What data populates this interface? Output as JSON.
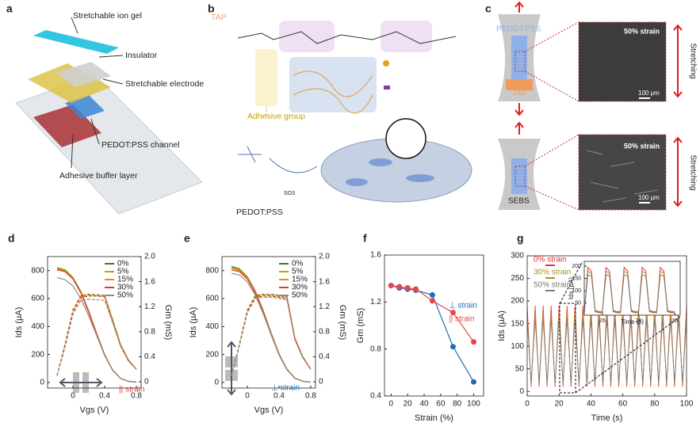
{
  "panel_a": {
    "label": "a",
    "ion_gel": "Stretchable ion gel",
    "insulator": "Insulator",
    "electrode": "Stretchable electrode",
    "channel": "PEDOT:PSS channel",
    "buffer": "Adhesive buffer layer"
  },
  "panel_b": {
    "label": "b",
    "tap": "TAP",
    "adhesive": "Adhesive group",
    "pedot": "PEDOT:PSS",
    "so3": "SO3"
  },
  "panel_c": {
    "label": "c",
    "top": {
      "pedot": "PEDOT:PSS",
      "tap": "TAP",
      "strain": "50% strain",
      "scale": "100 µm",
      "stretching": "Stretching"
    },
    "bottom": {
      "sebs": "SEBS",
      "strain": "50% strain",
      "scale": "100 µm",
      "stretching": "Stretching"
    }
  },
  "chart_data": [
    {
      "type": "line",
      "panel": "d",
      "x": [
        -0.2,
        -0.1,
        0,
        0.1,
        0.2,
        0.3,
        0.4,
        0.5,
        0.6,
        0.7,
        0.8
      ],
      "xlim": [
        -0.32,
        0.86
      ],
      "xticks": [
        0,
        0.4,
        0.8
      ],
      "ylim": [
        -40,
        900
      ],
      "yticks": [
        0,
        200,
        400,
        600,
        800
      ],
      "y2lim": [
        -0.1,
        2.0
      ],
      "y2ticks": [
        0,
        0.4,
        0.8,
        1.2,
        1.6,
        {
          "value": 2,
          "label": "2.0"
        }
      ],
      "xlabel": "Vgs (V)",
      "ylabel": "Ids (µA)",
      "y2label": "Gm (mS)",
      "legend": "upper right",
      "annotation": "|| strain",
      "annotation_color": "#e8352b",
      "series": [
        {
          "name": "0%",
          "color": "#3b7a1e",
          "values": [
            820,
            805,
            750,
            650,
            510,
            350,
            200,
            90,
            30,
            8,
            2
          ]
        },
        {
          "name": "5%",
          "color": "#c8a400",
          "values": [
            815,
            800,
            745,
            645,
            505,
            348,
            198,
            90,
            30,
            8,
            2
          ]
        },
        {
          "name": "15%",
          "color": "#f08c00",
          "values": [
            810,
            795,
            742,
            642,
            503,
            346,
            197,
            89,
            30,
            8,
            2
          ]
        },
        {
          "name": "30%",
          "color": "#e8352b",
          "values": [
            805,
            792,
            740,
            640,
            500,
            345,
            196,
            88,
            29,
            8,
            2
          ]
        },
        {
          "name": "50%",
          "color": "#8c8c8c",
          "values": [
            750,
            735,
            690,
            600,
            475,
            335,
            192,
            87,
            29,
            8,
            2
          ]
        },
        {
          "axis": "y2",
          "dash": true,
          "color": "#3b7a1e",
          "values": [
            0.1,
            0.6,
            1.15,
            1.38,
            1.4,
            1.39,
            1.38,
            1.0,
            0.6,
            0.35,
            0.2
          ]
        },
        {
          "axis": "y2",
          "dash": true,
          "color": "#c8a400",
          "values": [
            0.1,
            0.6,
            1.14,
            1.37,
            1.39,
            1.38,
            1.37,
            1.0,
            0.6,
            0.35,
            0.2
          ]
        },
        {
          "axis": "y2",
          "dash": true,
          "color": "#f08c00",
          "values": [
            0.1,
            0.59,
            1.13,
            1.36,
            1.38,
            1.37,
            1.36,
            0.98,
            0.59,
            0.34,
            0.2
          ]
        },
        {
          "axis": "y2",
          "dash": true,
          "color": "#e8352b",
          "values": [
            0.1,
            0.58,
            1.12,
            1.35,
            1.37,
            1.37,
            1.36,
            0.97,
            0.58,
            0.34,
            0.2
          ]
        },
        {
          "axis": "y2",
          "dash": true,
          "color": "#8c8c8c",
          "values": [
            0.1,
            0.55,
            1.08,
            1.3,
            1.32,
            1.31,
            1.3,
            0.95,
            0.57,
            0.33,
            0.2
          ]
        }
      ]
    },
    {
      "type": "line",
      "panel": "e",
      "x": [
        -0.2,
        -0.1,
        0,
        0.1,
        0.2,
        0.3,
        0.4,
        0.5,
        0.6,
        0.7,
        0.8
      ],
      "xlim": [
        -0.32,
        0.86
      ],
      "xticks": [
        0,
        0.4,
        0.8
      ],
      "ylim": [
        -40,
        900
      ],
      "yticks": [
        0,
        200,
        400,
        600,
        800
      ],
      "y2lim": [
        -0.1,
        2.0
      ],
      "y2ticks": [
        0,
        0.4,
        0.8,
        1.2,
        1.6,
        {
          "value": 2,
          "label": "2.0"
        }
      ],
      "xlabel": "Vgs (V)",
      "ylabel": "Ids (µA)",
      "y2label": "Gm (mS)",
      "legend": "upper right",
      "annotation": "⊥ strain",
      "annotation_color": "#1f6fb4",
      "series": [
        {
          "name": "0%",
          "color": "#3b7a1e",
          "values": [
            830,
            812,
            755,
            655,
            515,
            355,
            205,
            95,
            32,
            8,
            2
          ]
        },
        {
          "name": "5%",
          "color": "#c8a400",
          "values": [
            822,
            805,
            750,
            650,
            510,
            352,
            203,
            94,
            31,
            8,
            2
          ]
        },
        {
          "name": "15%",
          "color": "#f08c00",
          "values": [
            815,
            800,
            745,
            646,
            506,
            350,
            201,
            93,
            31,
            8,
            2
          ]
        },
        {
          "name": "30%",
          "color": "#e8352b",
          "values": [
            805,
            792,
            740,
            640,
            502,
            347,
            199,
            92,
            30,
            8,
            2
          ]
        },
        {
          "name": "50%",
          "color": "#8c8c8c",
          "values": [
            780,
            768,
            720,
            625,
            492,
            340,
            196,
            90,
            30,
            8,
            2
          ]
        },
        {
          "axis": "y2",
          "dash": true,
          "color": "#3b7a1e",
          "values": [
            0.1,
            0.6,
            1.15,
            1.38,
            1.4,
            1.4,
            1.38,
            1.36,
            0.7,
            0.4,
            0.2
          ]
        },
        {
          "axis": "y2",
          "dash": true,
          "color": "#c8a400",
          "values": [
            0.1,
            0.6,
            1.14,
            1.37,
            1.39,
            1.39,
            1.37,
            1.35,
            0.7,
            0.4,
            0.2
          ]
        },
        {
          "axis": "y2",
          "dash": true,
          "color": "#f08c00",
          "values": [
            0.1,
            0.59,
            1.13,
            1.36,
            1.38,
            1.38,
            1.36,
            1.34,
            0.69,
            0.39,
            0.2
          ]
        },
        {
          "axis": "y2",
          "dash": true,
          "color": "#e8352b",
          "values": [
            0.1,
            0.58,
            1.12,
            1.35,
            1.37,
            1.37,
            1.35,
            1.33,
            0.68,
            0.39,
            0.2
          ]
        },
        {
          "axis": "y2",
          "dash": true,
          "color": "#8c8c8c",
          "values": [
            0.1,
            0.57,
            1.1,
            1.33,
            1.35,
            1.35,
            1.33,
            1.31,
            0.67,
            0.38,
            0.2
          ]
        }
      ]
    },
    {
      "type": "line",
      "panel": "f",
      "markers": true,
      "x": [
        0,
        10,
        20,
        30,
        50,
        75,
        100
      ],
      "xlim": [
        -8,
        112
      ],
      "xticks": [
        0,
        20,
        40,
        60,
        80,
        100
      ],
      "ylim": [
        0.4,
        1.6
      ],
      "yticks": [
        0.4,
        0.8,
        1.2,
        1.6
      ],
      "xlabel": "Strain (%)",
      "ylabel": "Gm (mS)",
      "legend": "center right",
      "series": [
        {
          "name": "⊥ strain",
          "color": "#1f6fb4",
          "values": [
            1.34,
            1.32,
            1.31,
            1.3,
            1.26,
            0.82,
            0.52
          ]
        },
        {
          "name": "|| strain",
          "color": "#e8454a",
          "values": [
            1.34,
            1.33,
            1.32,
            1.31,
            1.21,
            1.11,
            0.86
          ]
        }
      ]
    },
    {
      "type": "line",
      "panel": "g",
      "x": [
        0,
        2.5,
        5,
        7.5,
        10,
        12.5,
        15,
        17.5,
        20,
        22.5,
        25,
        27.5,
        30,
        32.5,
        35,
        37.5,
        40,
        42.5,
        45,
        47.5,
        50,
        52.5,
        55,
        57.5,
        60,
        62.5,
        65,
        67.5,
        70,
        72.5,
        75,
        77.5,
        80,
        82.5,
        85,
        87.5,
        90,
        92.5,
        95,
        97.5,
        100
      ],
      "xlim": [
        0,
        100
      ],
      "xticks": [
        0,
        20,
        40,
        60,
        80,
        100
      ],
      "ylim": [
        -10,
        300
      ],
      "yticks": [
        0,
        50,
        100,
        150,
        200,
        250,
        300
      ],
      "xlabel": "Time (s)",
      "ylabel": "Ids (µA)",
      "legend": "upper left",
      "series": [
        {
          "name": "0% strain",
          "color": "#e8352b",
          "values": [
            190,
            10,
            190,
            10,
            190,
            10,
            190,
            10,
            190,
            10,
            190,
            10,
            190,
            10,
            190,
            10,
            190,
            10,
            190,
            10,
            190,
            10,
            190,
            10,
            190,
            10,
            190,
            10,
            190,
            10,
            190,
            10,
            190,
            10,
            190,
            10,
            190,
            10,
            190,
            10,
            190
          ]
        },
        {
          "name": "30% strain",
          "color": "#a89020",
          "values": [
            175,
            15,
            175,
            15,
            175,
            15,
            175,
            15,
            175,
            15,
            175,
            15,
            175,
            15,
            175,
            15,
            175,
            15,
            175,
            15,
            175,
            15,
            175,
            15,
            175,
            15,
            175,
            15,
            175,
            15,
            175,
            15,
            175,
            15,
            175,
            15,
            175,
            15,
            175,
            15,
            175
          ]
        },
        {
          "name": "50% strain",
          "color": "#7a7a7a",
          "values": [
            160,
            20,
            160,
            20,
            160,
            20,
            160,
            20,
            160,
            20,
            160,
            20,
            160,
            20,
            160,
            20,
            160,
            20,
            160,
            20,
            160,
            20,
            160,
            20,
            160,
            20,
            160,
            20,
            160,
            20,
            160,
            20,
            160,
            20,
            160,
            20,
            160,
            20,
            160,
            20,
            160
          ]
        }
      ],
      "inset": {
        "type": "line",
        "x": [
          25,
          25.2,
          25.4,
          25.6,
          25.8,
          26,
          26.2,
          26.4,
          26.6,
          26.8,
          27,
          27.2,
          27.4,
          27.6,
          27.8,
          28,
          28.2,
          28.4,
          28.6,
          28.8,
          29,
          29.2,
          29.4,
          29.6,
          29.8,
          30
        ],
        "xlim": [
          25,
          30.3
        ],
        "xticks": [
          26,
          28,
          30
        ],
        "ylim": [
          0,
          220
        ],
        "yticks": [
          50,
          100,
          150,
          200
        ],
        "xlabel": "Time (s)",
        "ylabel": "Ids (µA)",
        "series": [
          {
            "color": "#e8352b",
            "values": [
              10,
              195,
              180,
              15,
              10,
              10,
              195,
              180,
              15,
              10,
              10,
              195,
              180,
              15,
              10,
              10,
              195,
              180,
              15,
              10,
              10,
              195,
              180,
              15,
              10,
              10
            ]
          },
          {
            "color": "#a89020",
            "values": [
              12,
              180,
              170,
              18,
              12,
              12,
              180,
              170,
              18,
              12,
              12,
              180,
              170,
              18,
              12,
              12,
              180,
              170,
              18,
              12,
              12,
              180,
              170,
              18,
              12,
              12
            ]
          },
          {
            "color": "#7a7a7a",
            "values": [
              15,
              165,
              160,
              20,
              15,
              15,
              165,
              160,
              20,
              15,
              15,
              165,
              160,
              20,
              15,
              15,
              165,
              160,
              20,
              15,
              15,
              165,
              160,
              20,
              15,
              15
            ]
          }
        ]
      }
    }
  ]
}
